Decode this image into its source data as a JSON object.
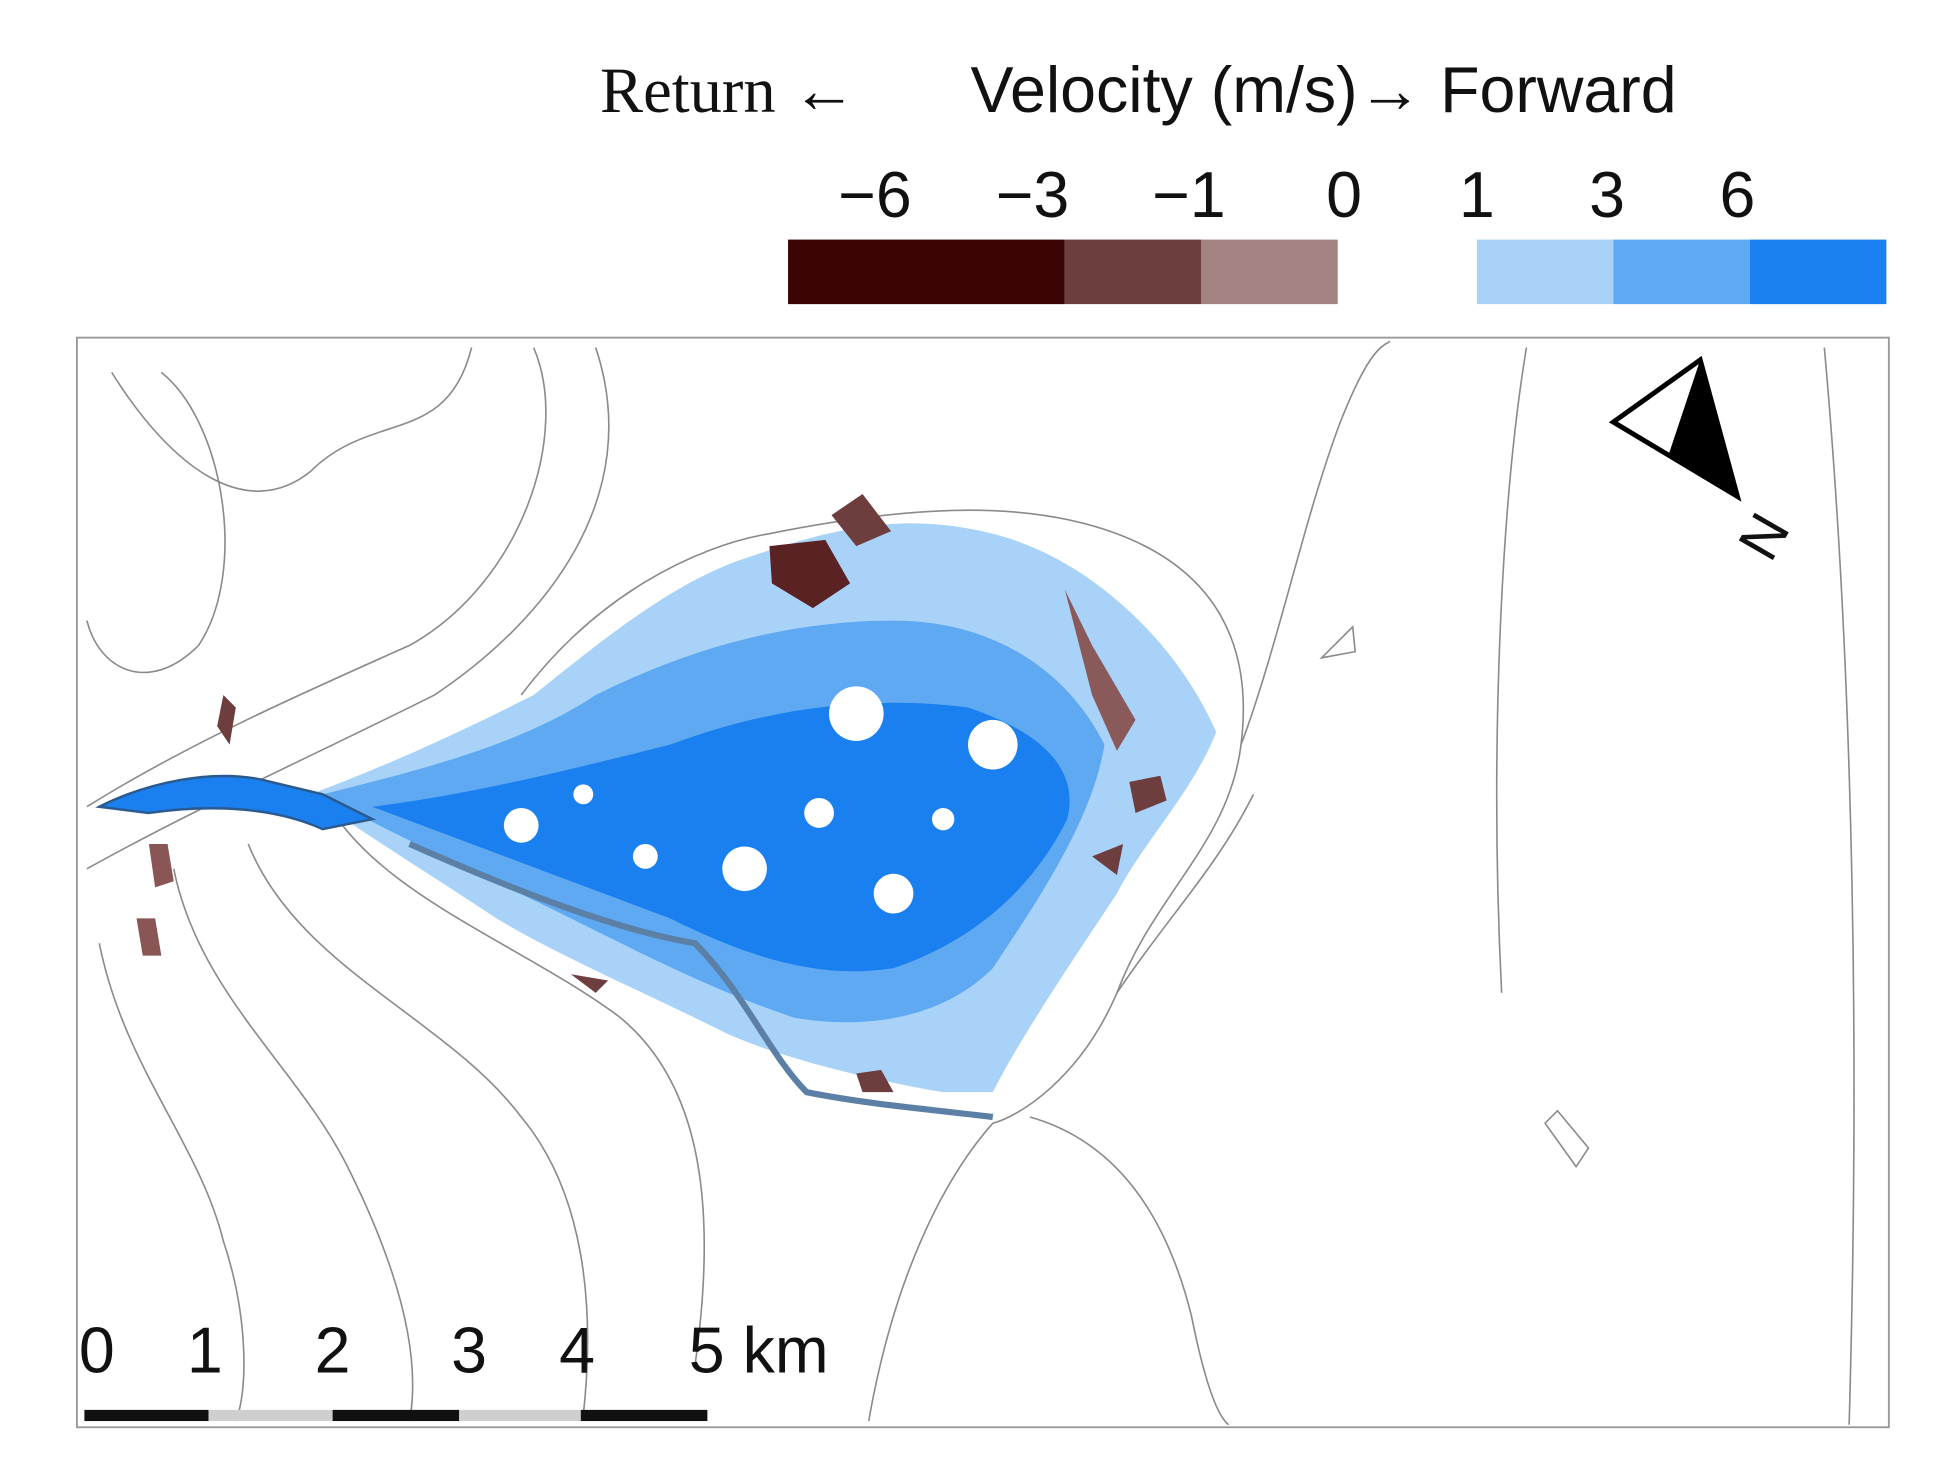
{
  "legend": {
    "title_left": "Return ←",
    "title_right": "Velocity (m/s)→ Forward",
    "tick_labels": [
      "−6",
      "−3",
      "−1",
      "0",
      "1",
      "3",
      "6"
    ],
    "colors": [
      "#3b0505",
      "#6e3d3d",
      "#a38282",
      "#ffffff",
      "#a8d2f8",
      "#5ea9f1",
      "#1b80ef"
    ]
  },
  "scale_bar": {
    "labels": [
      "0",
      "1",
      "2",
      "3",
      "4",
      "5 km"
    ]
  },
  "north_arrow": {
    "label": "N"
  }
}
